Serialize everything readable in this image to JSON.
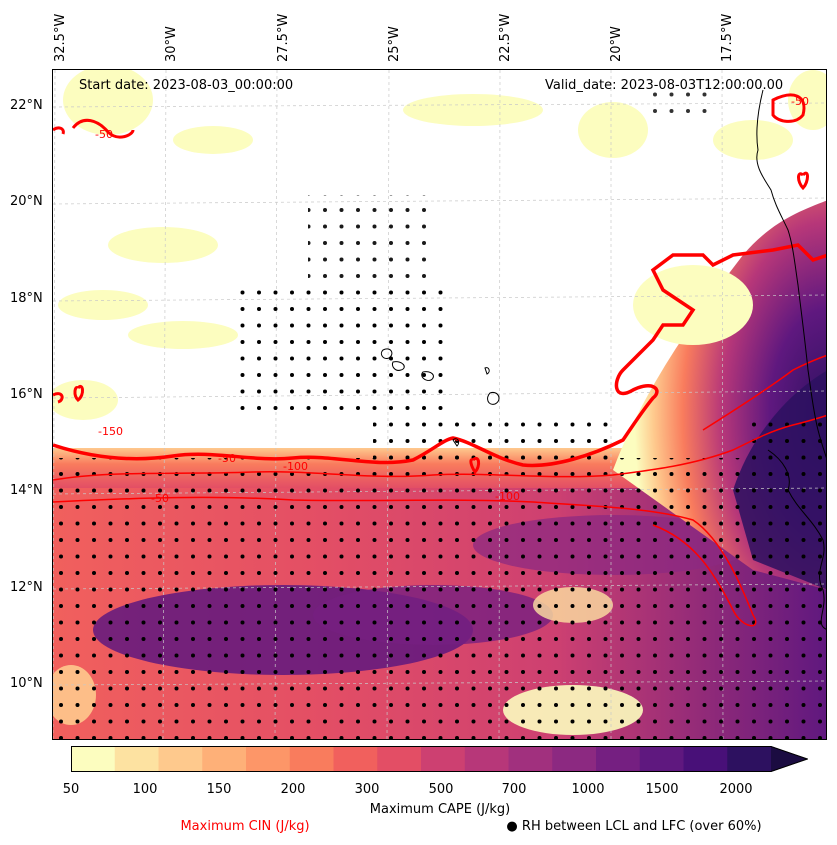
{
  "map": {
    "start_date": "Start date: 2023-08-03_00:00:00",
    "valid_date": "Valid_date: 2023-08-03T12:00:00.00",
    "longitude_labels": [
      "32.5°W",
      "30°W",
      "27.5°W",
      "25°W",
      "22.5°W",
      "20°W",
      "17.5°W"
    ],
    "latitude_labels": [
      "22°N",
      "20°N",
      "18°N",
      "16°N",
      "14°N",
      "12°N",
      "10°N"
    ],
    "cin_contour_labels": [
      "-50",
      "-150",
      "-100",
      "-100",
      "-50",
      "-50",
      "-50"
    ],
    "colors": {
      "cin_contour": "#ff0000",
      "coastline": "#000000",
      "stipple": "#000000",
      "gridline": "#c8c8c8"
    }
  },
  "colorbar": {
    "tick_labels": [
      "50",
      "100",
      "150",
      "200",
      "300",
      "500",
      "700",
      "1000",
      "1500",
      "2000"
    ],
    "colors": [
      "#fcfdbf",
      "#fde2a1",
      "#fec98d",
      "#feb078",
      "#fd9668",
      "#f97c5d",
      "#f1605d",
      "#e34e65",
      "#cd4071",
      "#b73779",
      "#a1307e",
      "#8c2981",
      "#751f81",
      "#5f187f",
      "#481078",
      "#2d1160",
      "#1b0c41"
    ],
    "label": "Maximum CAPE (J/kg)"
  },
  "legend": {
    "cin_label": "Maximum CIN (J/kg)",
    "rh_label": "● RH between LCL and LFC (over 60%)"
  }
}
